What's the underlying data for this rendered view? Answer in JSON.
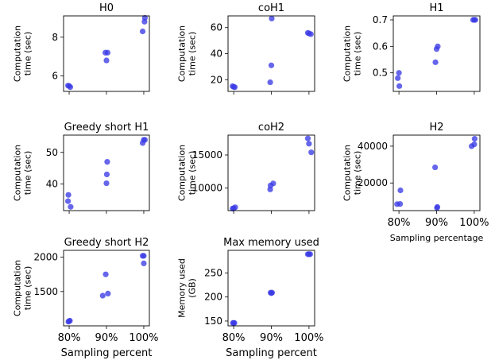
{
  "chart_data": [
    {
      "type": "scatter",
      "title": "H0",
      "ylabel": [
        "Computation",
        "time (sec)"
      ],
      "xlabel": "",
      "categories": [
        "80%",
        "90%",
        "100%"
      ],
      "show_xticklabels": false,
      "ylim": [
        5.2,
        9.1
      ],
      "yticks": [
        6,
        8
      ],
      "points": [
        {
          "x": 0.97,
          "y": 5.5
        },
        {
          "x": 1.0,
          "y": 5.48
        },
        {
          "x": 1.03,
          "y": 5.42
        },
        {
          "x": 1.97,
          "y": 7.2
        },
        {
          "x": 2.0,
          "y": 6.8
        },
        {
          "x": 2.03,
          "y": 7.2
        },
        {
          "x": 2.97,
          "y": 8.3
        },
        {
          "x": 3.02,
          "y": 8.8
        },
        {
          "x": 3.03,
          "y": 9.0
        }
      ]
    },
    {
      "type": "scatter",
      "title": "coH1",
      "ylabel": [
        "Computation",
        "time (sec)"
      ],
      "xlabel": "",
      "categories": [
        "80%",
        "90%",
        "100%"
      ],
      "show_xticklabels": false,
      "ylim": [
        11,
        69
      ],
      "yticks": [
        20,
        40,
        60
      ],
      "points": [
        {
          "x": 0.97,
          "y": 15
        },
        {
          "x": 1.0,
          "y": 14.5
        },
        {
          "x": 1.03,
          "y": 14.2
        },
        {
          "x": 1.97,
          "y": 18
        },
        {
          "x": 2.0,
          "y": 31
        },
        {
          "x": 2.01,
          "y": 67
        },
        {
          "x": 2.97,
          "y": 56
        },
        {
          "x": 3.0,
          "y": 55.5
        },
        {
          "x": 3.05,
          "y": 55
        }
      ]
    },
    {
      "type": "scatter",
      "title": "H1",
      "ylabel": [
        "Computation",
        "time (sec)"
      ],
      "xlabel": "",
      "categories": [
        "80%",
        "90%",
        "100%"
      ],
      "show_xticklabels": false,
      "ylim": [
        0.43,
        0.715
      ],
      "yticks": [
        0.5,
        0.6,
        0.7
      ],
      "points": [
        {
          "x": 0.97,
          "y": 0.48
        },
        {
          "x": 1.0,
          "y": 0.5
        },
        {
          "x": 1.01,
          "y": 0.45
        },
        {
          "x": 1.97,
          "y": 0.54
        },
        {
          "x": 2.0,
          "y": 0.59
        },
        {
          "x": 2.03,
          "y": 0.6
        },
        {
          "x": 2.97,
          "y": 0.7
        },
        {
          "x": 3.0,
          "y": 0.7
        },
        {
          "x": 3.03,
          "y": 0.7
        }
      ]
    },
    {
      "type": "scatter",
      "title": "Greedy short H1",
      "ylabel": [
        "Computation",
        "time (sec)"
      ],
      "xlabel": "",
      "categories": [
        "80%",
        "90%",
        "100%"
      ],
      "show_xticklabels": false,
      "ylim": [
        31.5,
        55.5
      ],
      "yticks": [
        40,
        50
      ],
      "points": [
        {
          "x": 0.97,
          "y": 34.5
        },
        {
          "x": 0.98,
          "y": 36.5
        },
        {
          "x": 1.04,
          "y": 32.7
        },
        {
          "x": 2.0,
          "y": 40.2
        },
        {
          "x": 2.01,
          "y": 43
        },
        {
          "x": 2.02,
          "y": 47
        },
        {
          "x": 2.97,
          "y": 53
        },
        {
          "x": 3.0,
          "y": 54
        },
        {
          "x": 3.03,
          "y": 54
        }
      ]
    },
    {
      "type": "scatter",
      "title": "coH2",
      "ylabel": [
        "Computation",
        "time (sec)"
      ],
      "xlabel": "",
      "categories": [
        "80%",
        "90%",
        "100%"
      ],
      "show_xticklabels": false,
      "ylim": [
        6600,
        18000
      ],
      "yticks": [
        10000,
        15000
      ],
      "points": [
        {
          "x": 0.97,
          "y": 6900
        },
        {
          "x": 1.0,
          "y": 6950
        },
        {
          "x": 1.04,
          "y": 7100
        },
        {
          "x": 1.97,
          "y": 9800
        },
        {
          "x": 1.98,
          "y": 10400
        },
        {
          "x": 2.05,
          "y": 10700
        },
        {
          "x": 2.97,
          "y": 17500
        },
        {
          "x": 3.0,
          "y": 16700
        },
        {
          "x": 3.06,
          "y": 15400
        }
      ]
    },
    {
      "type": "scatter",
      "title": "H2",
      "ylabel": [
        "Computation",
        "time (sec)"
      ],
      "xlabel": "Sampling percentage",
      "categories": [
        "80%",
        "90%",
        "100%"
      ],
      "show_xticklabels": true,
      "ylim": [
        5000,
        46000
      ],
      "yticks": [
        20000,
        40000
      ],
      "points": [
        {
          "x": 0.95,
          "y": 8500
        },
        {
          "x": 1.03,
          "y": 8600
        },
        {
          "x": 1.04,
          "y": 16000
        },
        {
          "x": 1.96,
          "y": 28500
        },
        {
          "x": 2.01,
          "y": 6500
        },
        {
          "x": 2.02,
          "y": 7000
        },
        {
          "x": 2.93,
          "y": 40000
        },
        {
          "x": 3.0,
          "y": 41000
        },
        {
          "x": 3.01,
          "y": 44000
        }
      ]
    },
    {
      "type": "scatter",
      "title": "Greedy short H2",
      "ylabel": [
        "Computation",
        "time (sec)"
      ],
      "xlabel": "Sampling percent",
      "categories": [
        "80%",
        "90%",
        "100%"
      ],
      "show_xticklabels": true,
      "ylim": [
        1000,
        2100
      ],
      "yticks": [
        1500,
        2000
      ],
      "points": [
        {
          "x": 0.98,
          "y": 1060
        },
        {
          "x": 1.0,
          "y": 1070
        },
        {
          "x": 1.02,
          "y": 1075
        },
        {
          "x": 1.9,
          "y": 1440
        },
        {
          "x": 1.98,
          "y": 1750
        },
        {
          "x": 2.04,
          "y": 1470
        },
        {
          "x": 2.97,
          "y": 2020
        },
        {
          "x": 3.0,
          "y": 2020
        },
        {
          "x": 3.0,
          "y": 1910
        }
      ]
    },
    {
      "type": "scatter",
      "title": "Max memory used",
      "ylabel": [
        "Memory used",
        "(GB)"
      ],
      "xlabel": "Sampling percent",
      "categories": [
        "80%",
        "90%",
        "100%"
      ],
      "show_xticklabels": true,
      "ylim": [
        140,
        297
      ],
      "yticks": [
        150,
        200,
        250
      ],
      "points": [
        {
          "x": 0.98,
          "y": 146
        },
        {
          "x": 1.0,
          "y": 146
        },
        {
          "x": 1.02,
          "y": 146
        },
        {
          "x": 1.98,
          "y": 209
        },
        {
          "x": 2.0,
          "y": 208
        },
        {
          "x": 2.02,
          "y": 209
        },
        {
          "x": 2.97,
          "y": 289
        },
        {
          "x": 3.0,
          "y": 289
        },
        {
          "x": 3.03,
          "y": 289
        }
      ]
    }
  ]
}
